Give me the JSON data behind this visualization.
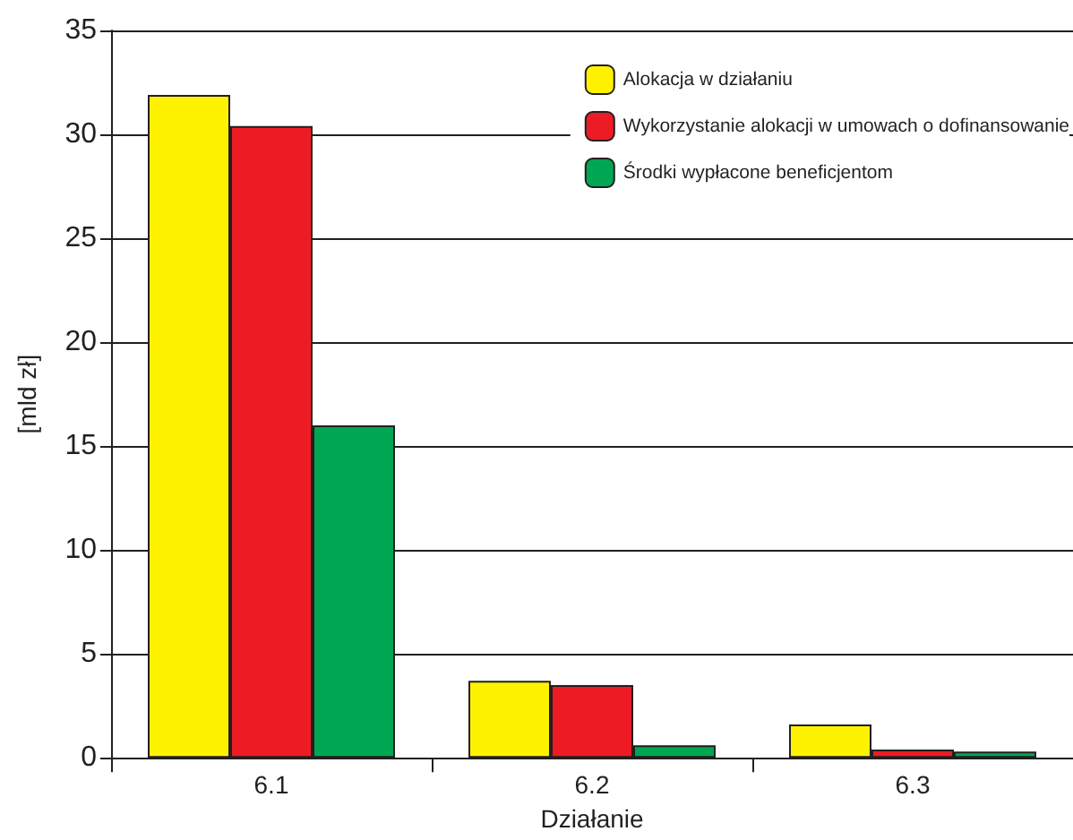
{
  "chart_data": {
    "type": "bar",
    "xlabel": "Działanie",
    "ylabel": "[mld zł]",
    "categories": [
      "6.1",
      "6.2",
      "6.3"
    ],
    "series": [
      {
        "name": "Alokacja w działaniu",
        "color": "#fff200",
        "values": [
          31.9,
          3.7,
          1.6
        ]
      },
      {
        "name": "Wykorzystanie alokacji w umowach o dofinansowanie",
        "color": "#ed1c24",
        "values": [
          30.4,
          3.5,
          0.4
        ]
      },
      {
        "name": "Środki wypłacone beneficjentom",
        "color": "#00a651",
        "values": [
          16.0,
          0.6,
          0.3
        ]
      }
    ],
    "ylim": [
      0,
      35
    ],
    "yticks": [
      0,
      5,
      10,
      15,
      20,
      25,
      30,
      35
    ],
    "grid": "y",
    "legend": "top right"
  }
}
